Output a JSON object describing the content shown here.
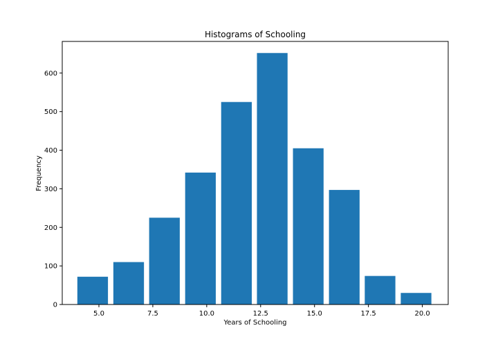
{
  "chart_data": {
    "type": "bar",
    "title": "Histograms of Schooling",
    "xlabel": "Years of Schooling",
    "ylabel": "Frequency",
    "xlim": [
      3.3,
      21.2
    ],
    "ylim": [
      0,
      682
    ],
    "xticks": [
      5.0,
      7.5,
      10.0,
      12.5,
      15.0,
      17.5,
      20.0
    ],
    "xtick_labels": [
      "5.0",
      "7.5",
      "10.0",
      "12.5",
      "15.0",
      "17.5",
      "20.0"
    ],
    "yticks": [
      0,
      100,
      200,
      300,
      400,
      500,
      600
    ],
    "ytick_labels": [
      "0",
      "100",
      "200",
      "300",
      "400",
      "500",
      "600"
    ],
    "bins": [
      {
        "start": 4.0,
        "end": 5.42,
        "value": 72
      },
      {
        "start": 5.67,
        "end": 7.09,
        "value": 110
      },
      {
        "start": 7.33,
        "end": 8.75,
        "value": 225
      },
      {
        "start": 9.0,
        "end": 10.42,
        "value": 342
      },
      {
        "start": 10.67,
        "end": 12.09,
        "value": 525
      },
      {
        "start": 12.33,
        "end": 13.75,
        "value": 652
      },
      {
        "start": 14.0,
        "end": 15.42,
        "value": 405
      },
      {
        "start": 15.67,
        "end": 17.09,
        "value": 297
      },
      {
        "start": 17.33,
        "end": 18.75,
        "value": 74
      },
      {
        "start": 19.0,
        "end": 20.42,
        "value": 30
      }
    ],
    "bar_color": "#1f77b4",
    "grid": false,
    "legend": "none"
  }
}
